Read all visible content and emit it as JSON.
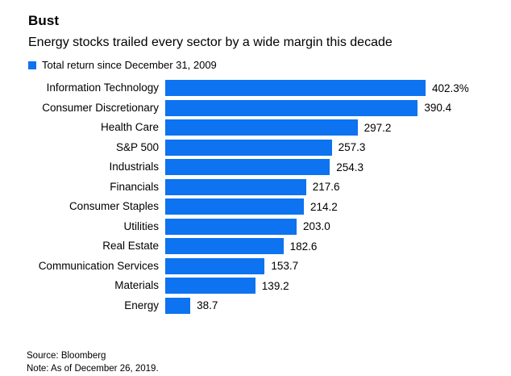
{
  "header": {
    "title": "Bust",
    "subtitle": "Energy stocks trailed every sector by a wide margin this decade",
    "legend_label": "Total return since December 31, 2009"
  },
  "colors": {
    "bar_blue": "#0d73f0",
    "text": "#000000",
    "background": "#ffffff"
  },
  "chart_data": {
    "type": "bar",
    "orientation": "horizontal",
    "title": "Bust",
    "subtitle": "Energy stocks trailed every sector by a wide margin this decade",
    "legend": [
      "Total return since December 31, 2009"
    ],
    "legend_position": "top-left",
    "grid": false,
    "xlabel": "",
    "ylabel": "",
    "xlim": [
      0,
      402.3
    ],
    "categories": [
      "Information Technology",
      "Consumer Discretionary",
      "Health Care",
      "S&P 500",
      "Industrials",
      "Financials",
      "Consumer Staples",
      "Utilities",
      "Real Estate",
      "Communication Services",
      "Materials",
      "Energy"
    ],
    "values": [
      402.3,
      390.4,
      297.2,
      257.3,
      254.3,
      217.6,
      214.2,
      203.0,
      182.6,
      153.7,
      139.2,
      38.7
    ],
    "value_labels": [
      "402.3%",
      "390.4",
      "297.2",
      "257.3",
      "254.3",
      "217.6",
      "214.2",
      "203.0",
      "182.6",
      "153.7",
      "139.2",
      "38.7"
    ]
  },
  "footer": {
    "source": "Source: Bloomberg",
    "note": "Note: As of December 26, 2019."
  }
}
